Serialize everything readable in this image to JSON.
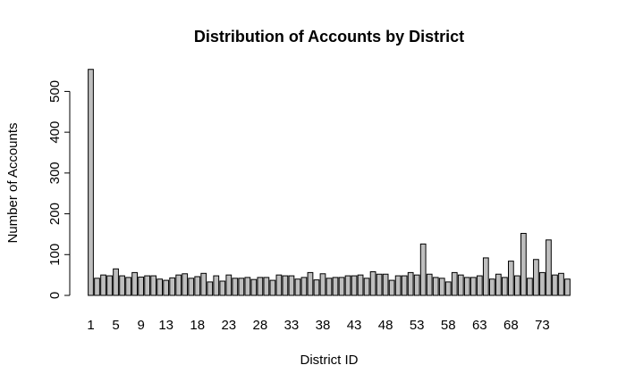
{
  "chart_data": {
    "type": "bar",
    "title": "Distribution of Accounts by District",
    "xlabel": "District ID",
    "ylabel": "Number of Accounts",
    "ylim": [
      0,
      560
    ],
    "y_ticks": [
      0,
      100,
      200,
      300,
      400,
      500
    ],
    "x_tick_labels": [
      1,
      5,
      9,
      13,
      18,
      23,
      28,
      33,
      38,
      43,
      48,
      53,
      58,
      63,
      68,
      73
    ],
    "bar_color": "#bebebe",
    "bar_edge_color": "#000000",
    "categories": [
      1,
      2,
      3,
      4,
      5,
      6,
      7,
      8,
      9,
      10,
      11,
      12,
      13,
      14,
      15,
      16,
      17,
      18,
      19,
      20,
      21,
      22,
      23,
      24,
      25,
      26,
      27,
      28,
      29,
      30,
      31,
      32,
      33,
      34,
      35,
      36,
      37,
      38,
      39,
      40,
      41,
      42,
      43,
      44,
      45,
      46,
      47,
      48,
      49,
      50,
      51,
      52,
      53,
      54,
      55,
      56,
      57,
      58,
      59,
      60,
      61,
      62,
      63,
      64,
      65,
      66,
      67,
      68,
      69,
      70,
      71,
      72,
      73,
      74,
      75,
      76,
      77
    ],
    "values": [
      554,
      42,
      50,
      48,
      65,
      48,
      44,
      56,
      45,
      48,
      48,
      40,
      37,
      43,
      50,
      53,
      42,
      46,
      54,
      33,
      48,
      35,
      50,
      42,
      42,
      44,
      39,
      44,
      44,
      37,
      50,
      48,
      48,
      40,
      44,
      56,
      38,
      53,
      42,
      44,
      44,
      48,
      48,
      50,
      42,
      58,
      52,
      52,
      37,
      48,
      48,
      56,
      50,
      126,
      52,
      44,
      42,
      33,
      56,
      50,
      44,
      44,
      48,
      92,
      40,
      52,
      44,
      84,
      48,
      152,
      42,
      88,
      56,
      136,
      50,
      54,
      40
    ]
  }
}
